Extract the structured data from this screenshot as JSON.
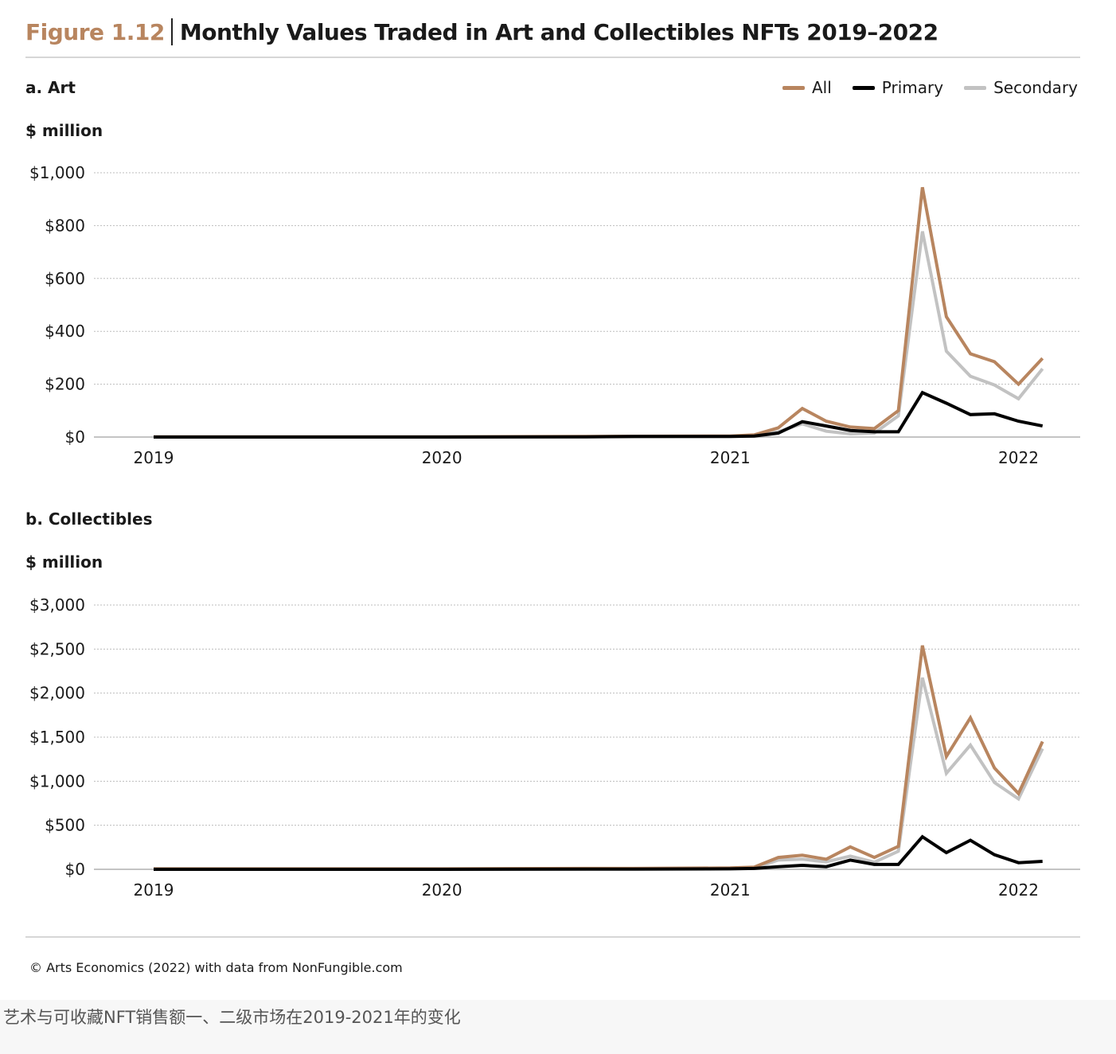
{
  "figure_label": "Figure 1.12",
  "figure_title": "Monthly Values Traded in Art and Collectibles NFTs 2019–2022",
  "colors": {
    "All": "#b8855f",
    "Primary": "#000000",
    "Secondary": "#c2c2c2",
    "grid": "#bdbdbd"
  },
  "legend": [
    {
      "name": "All",
      "color": "#b8855f"
    },
    {
      "name": "Primary",
      "color": "#000000"
    },
    {
      "name": "Secondary",
      "color": "#c2c2c2"
    }
  ],
  "source": "© Arts Economics (2022) with data from NonFungible.com",
  "caption": "艺术与可收藏NFT销售额一、二级市场在2019-2021年的变化",
  "chart_data": [
    {
      "type": "line",
      "title": "a. Art",
      "ylabel": "$ million",
      "xlabel": "",
      "ylim": [
        0,
        1000
      ],
      "yticks": [
        0,
        200,
        400,
        600,
        800,
        1000
      ],
      "ytick_labels": [
        "$0",
        "$200",
        "$400",
        "$600",
        "$800",
        "$1,000"
      ],
      "xticks": [
        0,
        12,
        24,
        36
      ],
      "xtick_labels": [
        "2019",
        "2020",
        "2021",
        "2022"
      ],
      "x_unit": "month index from Jan 2019",
      "x": [
        0,
        6,
        12,
        18,
        20,
        24,
        25,
        26,
        27,
        28,
        29,
        30,
        31,
        32,
        33,
        34,
        35,
        36,
        37
      ],
      "series": [
        {
          "name": "All",
          "values": [
            1,
            1,
            1,
            2,
            3,
            4,
            8,
            35,
            108,
            60,
            38,
            32,
            100,
            945,
            455,
            315,
            285,
            200,
            298
          ]
        },
        {
          "name": "Primary",
          "values": [
            0,
            0,
            0,
            1,
            2,
            2,
            4,
            15,
            58,
            42,
            25,
            20,
            20,
            168,
            128,
            85,
            88,
            60,
            42
          ]
        },
        {
          "name": "Secondary",
          "values": [
            1,
            1,
            1,
            1,
            1,
            2,
            4,
            20,
            50,
            22,
            12,
            15,
            80,
            778,
            325,
            230,
            197,
            145,
            258
          ]
        }
      ]
    },
    {
      "type": "line",
      "title": "b. Collectibles",
      "ylabel": "$ million",
      "xlabel": "",
      "ylim": [
        0,
        3000
      ],
      "yticks": [
        0,
        500,
        1000,
        1500,
        2000,
        2500,
        3000
      ],
      "ytick_labels": [
        "$0",
        "$500",
        "$1,000",
        "$1,500",
        "$2,000",
        "$2,500",
        "$3,000"
      ],
      "xticks": [
        0,
        12,
        24,
        36
      ],
      "xtick_labels": [
        "2019",
        "2020",
        "2021",
        "2022"
      ],
      "x_unit": "month index from Jan 2019",
      "x": [
        0,
        6,
        12,
        18,
        20,
        24,
        25,
        26,
        27,
        28,
        29,
        30,
        31,
        32,
        33,
        34,
        35,
        36,
        37
      ],
      "series": [
        {
          "name": "All",
          "values": [
            5,
            5,
            5,
            10,
            10,
            15,
            25,
            135,
            160,
            115,
            255,
            135,
            260,
            2540,
            1280,
            1720,
            1150,
            860,
            1450
          ]
        },
        {
          "name": "Primary",
          "values": [
            0,
            0,
            0,
            2,
            3,
            5,
            10,
            30,
            45,
            30,
            105,
            55,
            55,
            370,
            190,
            330,
            165,
            75,
            90
          ]
        },
        {
          "name": "Secondary",
          "values": [
            5,
            5,
            5,
            8,
            7,
            10,
            15,
            105,
            115,
            85,
            150,
            80,
            205,
            2175,
            1090,
            1410,
            985,
            800,
            1370
          ]
        }
      ]
    }
  ]
}
